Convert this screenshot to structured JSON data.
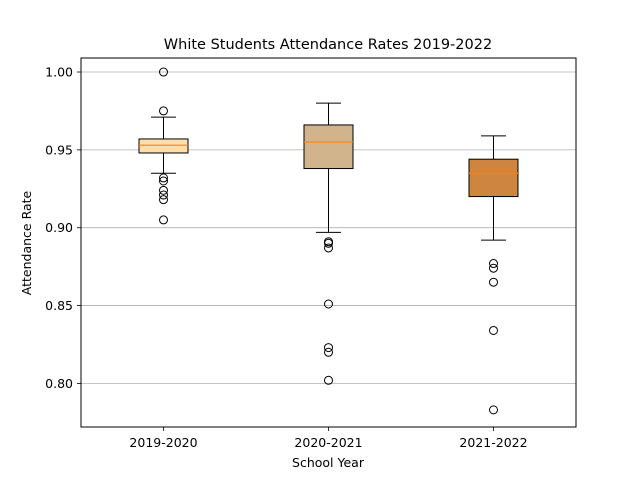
{
  "chart_data": {
    "type": "box",
    "title": "White Students Attendance Rates 2019-2022",
    "xlabel": "School Year",
    "ylabel": "Attendance Rate",
    "ylim": [
      0.772,
      1.009
    ],
    "yticks": [
      0.8,
      0.85,
      0.9,
      0.95,
      1.0
    ],
    "ytick_labels": [
      "0.80",
      "0.85",
      "0.90",
      "0.95",
      "1.00"
    ],
    "grid": "horizontal",
    "categories": [
      "2019-2020",
      "2020-2021",
      "2021-2022"
    ],
    "boxes": [
      {
        "label": "2019-2020",
        "fill": "#ffdead",
        "whisker_low": 0.935,
        "q1": 0.948,
        "median": 0.953,
        "q3": 0.957,
        "whisker_high": 0.971,
        "outliers": [
          1.0,
          0.975,
          0.932,
          0.93,
          0.924,
          0.921,
          0.918,
          0.905
        ]
      },
      {
        "label": "2020-2021",
        "fill": "#d2b48c",
        "whisker_low": 0.897,
        "q1": 0.938,
        "median": 0.955,
        "q3": 0.966,
        "whisker_high": 0.98,
        "outliers": [
          0.891,
          0.89,
          0.887,
          0.851,
          0.823,
          0.82,
          0.802
        ]
      },
      {
        "label": "2021-2022",
        "fill": "#cd853f",
        "whisker_low": 0.892,
        "q1": 0.92,
        "median": 0.935,
        "q3": 0.944,
        "whisker_high": 0.959,
        "outliers": [
          0.877,
          0.874,
          0.865,
          0.834,
          0.783
        ]
      }
    ],
    "median_color": "#ff7f0e"
  }
}
